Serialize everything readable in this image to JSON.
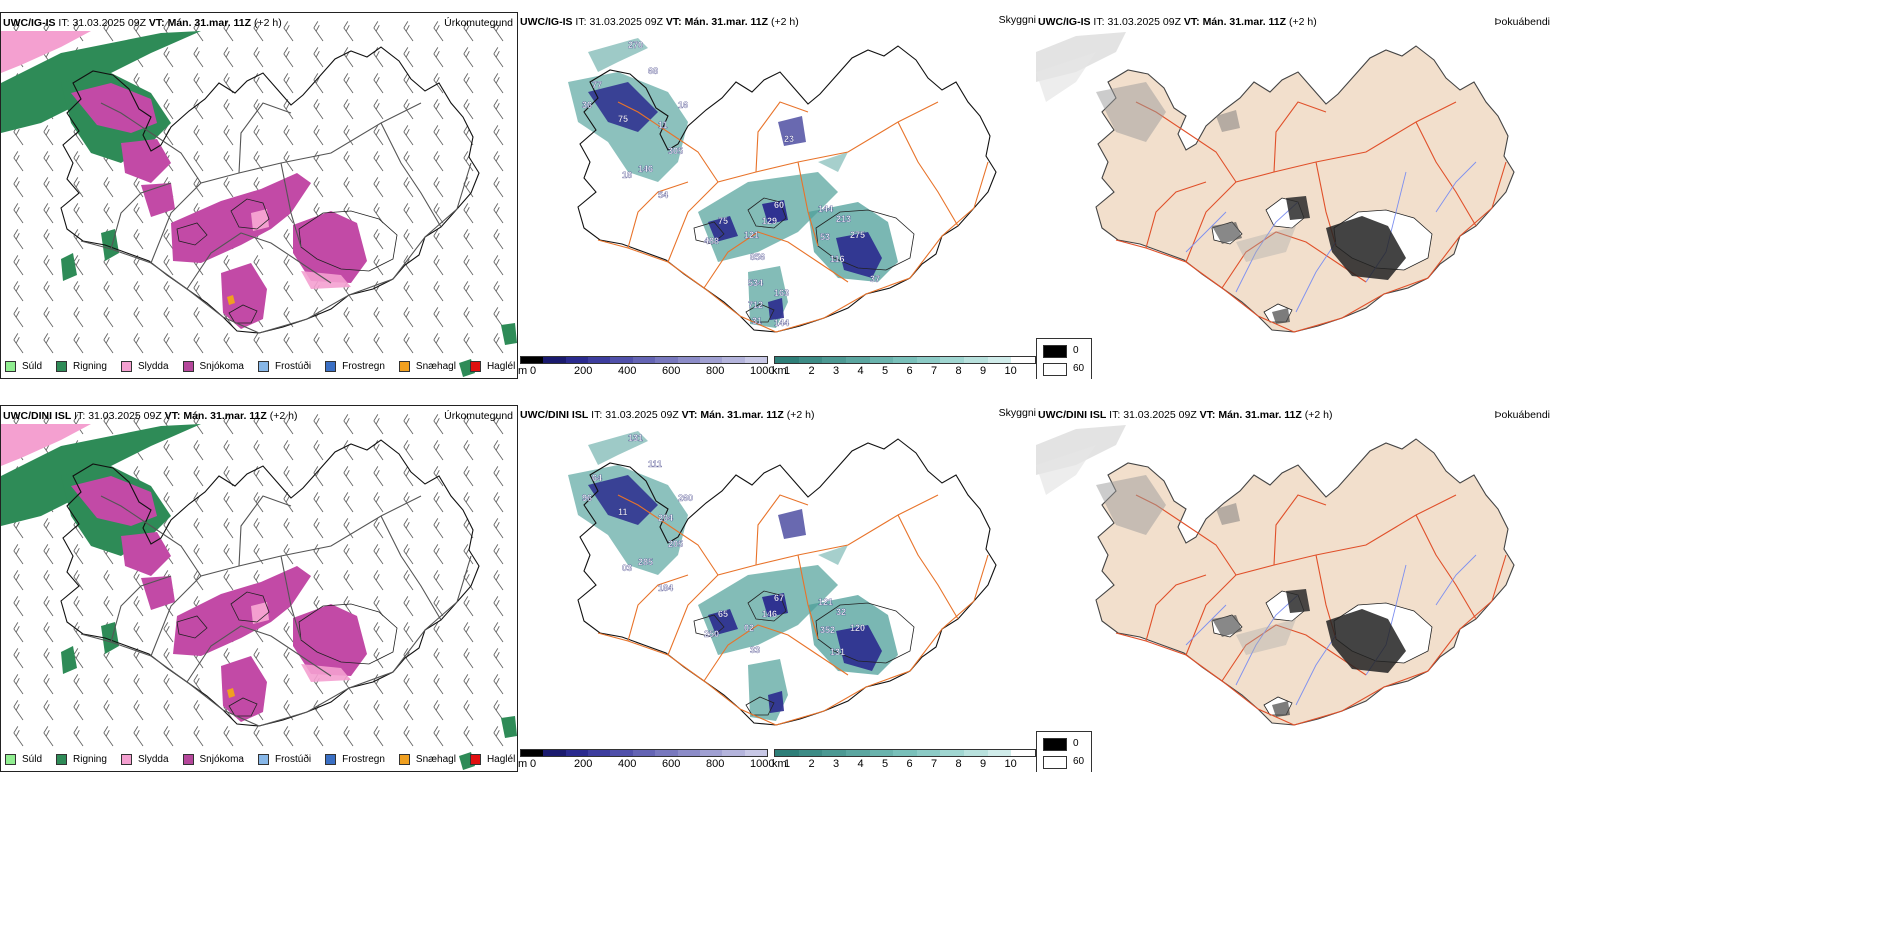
{
  "rows": [
    {
      "model": "UWC/IG-IS",
      "it_label": "IT:",
      "it_value": "31.03.2025 09Z",
      "vt_label": "VT:",
      "vt_value": "Mán. 31.mar. 11Z",
      "offset": "(+2 h)",
      "precip_title": "Úrkomutegund",
      "vis_title": "Skyggni",
      "fog_title": "Þokuábendi",
      "vis_labels": [
        "270",
        "68",
        "77",
        "36",
        "16",
        "75",
        "11",
        "305",
        "146",
        "18",
        "54",
        "60",
        "75",
        "129",
        "121",
        "488",
        "856",
        "144",
        "213",
        "53",
        "275",
        "116",
        "37",
        "534",
        "163",
        "712",
        "31",
        "144",
        "23"
      ]
    },
    {
      "model": "UWC/DINI ISL",
      "it_label": "IT:",
      "it_value": "31.03.2025 09Z",
      "vt_label": "VT:",
      "vt_value": "Mán. 31.mar. 11Z",
      "offset": "(+2 h)",
      "precip_title": "Úrkomutegund",
      "vis_title": "Skyggni",
      "fog_title": "Þokuábendi",
      "vis_labels": [
        "131",
        "111",
        "64",
        "96",
        "260",
        "11",
        "204",
        "205",
        "285",
        "03",
        "184",
        "67",
        "65",
        "146",
        "02",
        "250",
        "33",
        "121",
        "32",
        "352",
        "120",
        "131"
      ]
    }
  ],
  "precip_legend": [
    {
      "label": "Súld",
      "color": "#90ee90"
    },
    {
      "label": "Rigning",
      "color": "#2e8b57"
    },
    {
      "label": "Slydda",
      "color": "#f4a0d0"
    },
    {
      "label": "Snjókoma",
      "color": "#b5479b"
    },
    {
      "label": "Frostúði",
      "color": "#87b7e8"
    },
    {
      "label": "Frostregn",
      "color": "#3a6fc4"
    },
    {
      "label": "Snæhagl",
      "color": "#f0a020"
    },
    {
      "label": "Haglél",
      "color": "#e01010"
    }
  ],
  "vis_colorbar_m": {
    "unit": "m",
    "ticks": [
      "0",
      "200",
      "400",
      "600",
      "800",
      "1000"
    ],
    "colors": [
      "#000000",
      "#1a1a6e",
      "#2a2a8e",
      "#3d3d9e",
      "#5050aa",
      "#6464b4",
      "#7878be",
      "#8c8cc8",
      "#a0a0d2",
      "#b4b4dc",
      "#c8c8e6"
    ]
  },
  "vis_colorbar_km": {
    "unit": "km",
    "ticks": [
      "1",
      "2",
      "3",
      "4",
      "5",
      "6",
      "7",
      "8",
      "9",
      "10"
    ],
    "colors": [
      "#2e7f79",
      "#3d8c86",
      "#4c9993",
      "#5ba6a0",
      "#6ab3ad",
      "#79c0ba",
      "#8ccbc6",
      "#a0d6d1",
      "#b8e1dd",
      "#d0ecea",
      "#ffffff"
    ]
  },
  "fog_legend": [
    {
      "label": "0",
      "color": "#000000"
    },
    {
      "label": "60",
      "color": "#ffffff"
    }
  ],
  "colors": {
    "land_fog": "#f2dfcc",
    "roads": "#e8732a",
    "fog_roads": "#e0502a",
    "rivers": "#7d8ff0",
    "snow": "#c24aa6",
    "rain": "#2e8b57",
    "sleet": "#f4a0d0",
    "vis_dark": "#2a2a8e",
    "vis_teal": "#4e9f99"
  }
}
